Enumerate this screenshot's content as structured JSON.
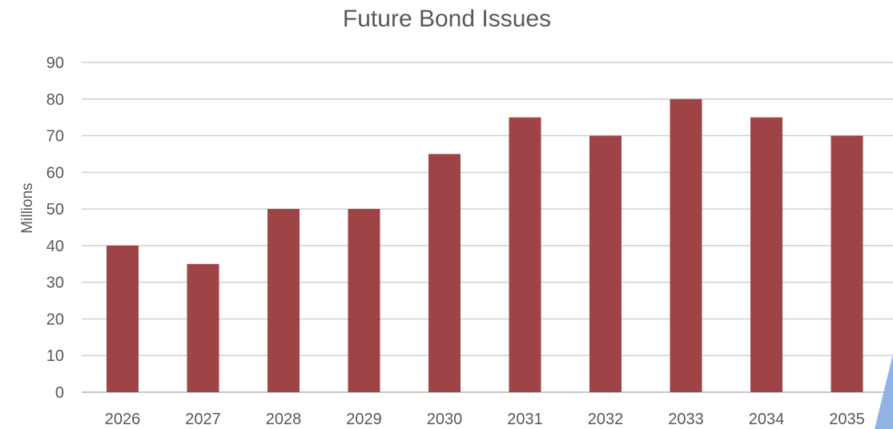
{
  "chart_data": {
    "type": "bar",
    "title": "Future Bond Issues",
    "xlabel": "",
    "ylabel": "Millions",
    "categories": [
      "2026",
      "2027",
      "2028",
      "2029",
      "2030",
      "2031",
      "2032",
      "2033",
      "2034",
      "2035"
    ],
    "values": [
      40,
      35,
      50,
      50,
      65,
      75,
      70,
      80,
      75,
      70
    ],
    "ylim": [
      0,
      90
    ],
    "yticks": [
      "0",
      "10",
      "20",
      "30",
      "40",
      "50",
      "60",
      "70",
      "80",
      "90"
    ],
    "grid": true,
    "legend": "none",
    "colors": {
      "bar": "#9e4446",
      "gridline": "#d0d0d0",
      "text": "#595959",
      "corner_accent": "#8fb4e3"
    }
  }
}
